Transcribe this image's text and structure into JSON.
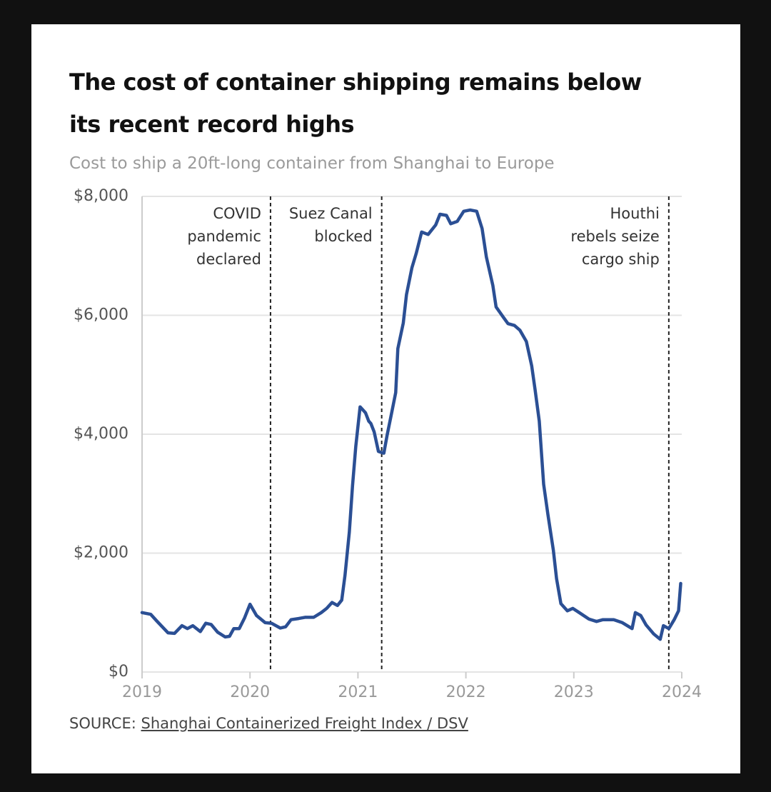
{
  "chart_data": {
    "type": "line",
    "title": "The cost of container shipping remains below its recent record highs",
    "subtitle": "Cost to ship a 20ft-long container from Shanghai to Europe",
    "source_label": "SOURCE:",
    "source_link": "Shanghai Containerized Freight Index / DSV",
    "color": "#2b4f94",
    "grid": true,
    "xlim": [
      2019,
      2024
    ],
    "xticks": [
      2019,
      2020,
      2021,
      2022,
      2023,
      2024
    ],
    "ylim": [
      0,
      8000
    ],
    "yticks": [
      {
        "value": 0,
        "label": "$0"
      },
      {
        "value": 2000,
        "label": "$2,000"
      },
      {
        "value": 4000,
        "label": "$4,000"
      },
      {
        "value": 6000,
        "label": "$6,000"
      },
      {
        "value": 8000,
        "label": "$8,000"
      }
    ],
    "annotations": [
      {
        "x": 2020.19,
        "lines": [
          "COVID",
          "pandemic",
          "declared"
        ]
      },
      {
        "x": 2021.22,
        "lines": [
          "Suez Canal",
          "blocked"
        ]
      },
      {
        "x": 2023.88,
        "lines": [
          "Houthi",
          "rebels seize",
          "cargo ship"
        ]
      }
    ],
    "x": [
      2019.0,
      2019.08,
      2019.14,
      2019.24,
      2019.3,
      2019.37,
      2019.42,
      2019.47,
      2019.54,
      2019.59,
      2019.64,
      2019.7,
      2019.77,
      2019.81,
      2019.85,
      2019.9,
      2019.95,
      2020.0,
      2020.06,
      2020.14,
      2020.2,
      2020.28,
      2020.33,
      2020.38,
      2020.45,
      2020.51,
      2020.59,
      2020.66,
      2020.71,
      2020.76,
      2020.81,
      2020.85,
      2020.88,
      2020.92,
      2020.95,
      2020.98,
      2021.02,
      2021.07,
      2021.1,
      2021.12,
      2021.15,
      2021.19,
      2021.24,
      2021.27,
      2021.31,
      2021.35,
      2021.37,
      2021.42,
      2021.45,
      2021.5,
      2021.54,
      2021.59,
      2021.65,
      2021.72,
      2021.76,
      2021.82,
      2021.86,
      2021.92,
      2021.98,
      2022.04,
      2022.1,
      2022.15,
      2022.19,
      2022.25,
      2022.28,
      2022.35,
      2022.39,
      2022.45,
      2022.5,
      2022.56,
      2022.61,
      2022.64,
      2022.68,
      2022.72,
      2022.76,
      2022.81,
      2022.84,
      2022.88,
      2022.94,
      2022.99,
      2023.05,
      2023.14,
      2023.21,
      2023.27,
      2023.37,
      2023.45,
      2023.54,
      2023.57,
      2023.62,
      2023.67,
      2023.74,
      2023.8,
      2023.83,
      2023.88,
      2023.93,
      2023.97,
      2023.99
    ],
    "values": [
      1000,
      970,
      850,
      660,
      650,
      780,
      730,
      780,
      680,
      820,
      800,
      670,
      590,
      600,
      730,
      730,
      910,
      1140,
      950,
      830,
      820,
      740,
      760,
      880,
      900,
      920,
      920,
      1000,
      1070,
      1170,
      1120,
      1210,
      1630,
      2350,
      3130,
      3800,
      4460,
      4360,
      4220,
      4180,
      4040,
      3710,
      3680,
      3980,
      4340,
      4700,
      5440,
      5870,
      6350,
      6800,
      7040,
      7400,
      7360,
      7520,
      7700,
      7680,
      7540,
      7580,
      7750,
      7770,
      7750,
      7460,
      6980,
      6500,
      6140,
      5960,
      5860,
      5830,
      5750,
      5560,
      5150,
      4760,
      4220,
      3160,
      2650,
      2050,
      1570,
      1150,
      1030,
      1070,
      1000,
      890,
      850,
      880,
      880,
      830,
      730,
      1000,
      950,
      790,
      640,
      550,
      780,
      730,
      880,
      1030,
      1490
    ]
  }
}
